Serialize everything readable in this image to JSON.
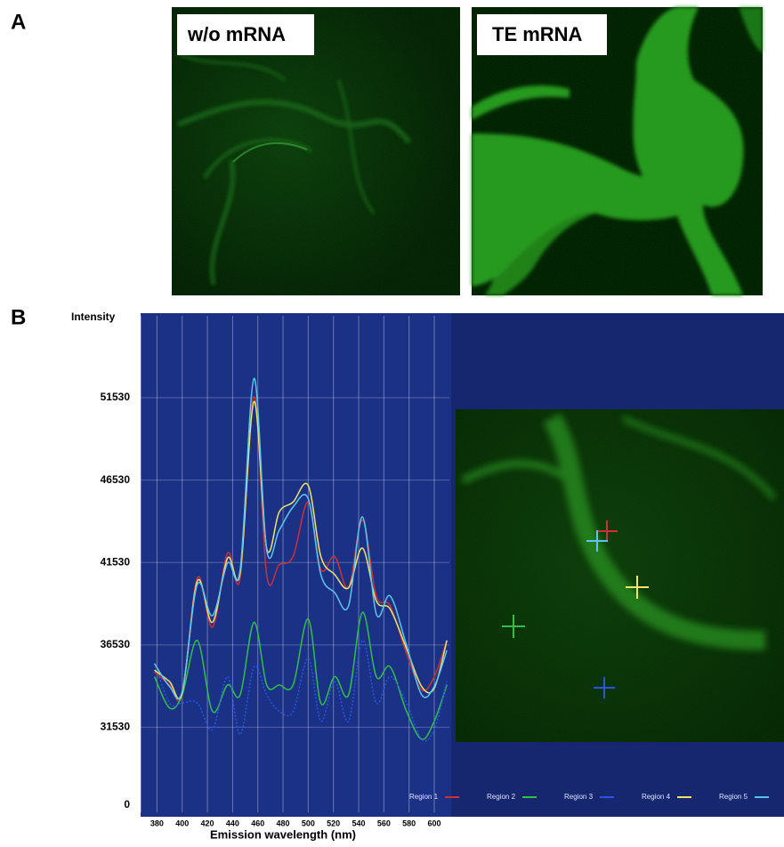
{
  "panel_labels": [
    "A",
    "B"
  ],
  "images": [
    {
      "label": "w/o mRNA"
    },
    {
      "label": "TE mRNA"
    }
  ],
  "chart_data": {
    "type": "line",
    "y_axis_label": "Intensity",
    "y_axis_bottom_label": "0",
    "x_axis_label": "Emission wavelength (nm)",
    "x": [
      378,
      390,
      400,
      412,
      424,
      436,
      446,
      457,
      467,
      477,
      488,
      500,
      510,
      521,
      532,
      543,
      554,
      565,
      578,
      590,
      600,
      610
    ],
    "series": [
      {
        "name": "Region 1",
        "color": "#c8323a",
        "values": [
          34900,
          34100,
          33500,
          40600,
          37600,
          42100,
          40600,
          51600,
          40800,
          41400,
          41900,
          45200,
          41100,
          41900,
          40000,
          44100,
          39500,
          38900,
          36000,
          33800,
          34600,
          36800
        ]
      },
      {
        "name": "Region 2",
        "color": "#2fbf4a",
        "values": [
          34600,
          32700,
          33500,
          36800,
          32500,
          34100,
          33500,
          37900,
          34100,
          34100,
          34100,
          38100,
          33000,
          34600,
          33500,
          38500,
          34600,
          35200,
          32500,
          30800,
          31900,
          34100
        ]
      },
      {
        "name": "Region 3",
        "color": "#2a55e0",
        "values": [
          35400,
          33000,
          33000,
          33000,
          31400,
          34600,
          31100,
          35200,
          33500,
          32500,
          32500,
          35700,
          31900,
          34300,
          31900,
          36800,
          33000,
          34600,
          33000,
          30800,
          31400,
          34300
        ]
      },
      {
        "name": "Region 4",
        "color": "#f2e46a",
        "values": [
          35000,
          34300,
          33600,
          40400,
          37900,
          41800,
          40900,
          51300,
          42400,
          44600,
          45200,
          46200,
          41900,
          40800,
          40000,
          42400,
          39200,
          38700,
          36300,
          34000,
          33900,
          36800
        ]
      },
      {
        "name": "Region 5",
        "color": "#5cc6ea",
        "values": [
          35400,
          34000,
          33700,
          40200,
          38300,
          41500,
          41100,
          52700,
          42300,
          43500,
          44900,
          45400,
          40800,
          39700,
          38900,
          44300,
          38400,
          39500,
          36500,
          33500,
          34000,
          36200
        ]
      }
    ],
    "xlim": [
      367,
      612
    ],
    "xticks": [
      380,
      400,
      420,
      440,
      460,
      480,
      500,
      520,
      540,
      560,
      580,
      600
    ],
    "ylim": [
      26800,
      56500
    ],
    "yticks": [
      31530,
      36530,
      41530,
      46530,
      51530
    ],
    "grid": true,
    "smooth": true,
    "dotted_series": [
      2
    ],
    "legend": "bottom-right"
  }
}
